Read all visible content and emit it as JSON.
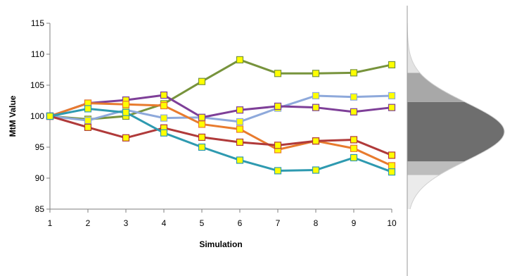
{
  "chart_data": {
    "type": "line",
    "title": "",
    "xlabel": "Simulation",
    "ylabel": "MtM Value",
    "x": [
      1,
      2,
      3,
      4,
      5,
      6,
      7,
      8,
      9,
      10
    ],
    "xlim": [
      1,
      10
    ],
    "ylim": [
      85,
      115
    ],
    "yticks": [
      85,
      90,
      95,
      100,
      105,
      110,
      115
    ],
    "grid": false,
    "legend": "none",
    "marker": "square",
    "series": [
      {
        "color": "#77933C",
        "marker_color": "#FFFF00",
        "values": [
          100,
          99.5,
          100,
          102,
          105.6,
          109.1,
          106.9,
          106.9,
          107.0,
          108.3
        ]
      },
      {
        "color": "#8EA9DB",
        "marker_color": "#FFFF00",
        "values": [
          100,
          99.3,
          101,
          99.7,
          99.8,
          99.1,
          101.3,
          103.3,
          103.1,
          103.3
        ]
      },
      {
        "color": "#7E3F98",
        "marker_color": "#FFFF00",
        "values": [
          100,
          102.1,
          102.6,
          103.4,
          99.8,
          101,
          101.6,
          101.4,
          100.7,
          101.4
        ]
      },
      {
        "color": "#E87B2E",
        "marker_color": "#FFFF00",
        "values": [
          100,
          102.1,
          101.9,
          101.7,
          98.7,
          97.9,
          94.6,
          96.0,
          94.8,
          92.0
        ]
      },
      {
        "color": "#B03A3A",
        "marker_color": "#FFFF00",
        "values": [
          100,
          98.2,
          96.5,
          98.1,
          96.6,
          95.8,
          95.3,
          96.0,
          96.2,
          93.7
        ]
      },
      {
        "color": "#2E9AB0",
        "marker_color": "#FFFF00",
        "values": [
          100,
          101.2,
          100.6,
          97.3,
          95.0,
          92.9,
          91.2,
          91.3,
          93.3,
          91.0
        ]
      }
    ],
    "distribution": {
      "type": "normal",
      "mean": 97.5,
      "sd": 4.7,
      "bands": [
        {
          "from": 85,
          "to": 90.5,
          "color": "#EBEBEB"
        },
        {
          "from": 90.5,
          "to": 92.7,
          "color": "#BDBDBD"
        },
        {
          "from": 92.7,
          "to": 102.3,
          "color": "#6E6E6E"
        },
        {
          "from": 102.3,
          "to": 107.0,
          "color": "#A8A8A8"
        },
        {
          "from": 107.0,
          "to": 115,
          "color": "#E3E3E3"
        }
      ]
    }
  }
}
